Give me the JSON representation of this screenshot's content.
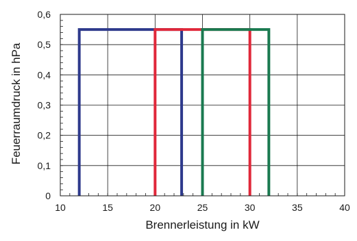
{
  "chart_data": {
    "type": "line",
    "title": "",
    "xlabel": "Brennerleistung in kW",
    "ylabel": "Feuerraumdruck in hPa",
    "xlim": [
      10,
      40
    ],
    "ylim": [
      0,
      0.6
    ],
    "xticks": [
      10,
      15,
      20,
      25,
      30,
      35,
      40
    ],
    "xtick_labels": [
      "10",
      "15",
      "20",
      "25",
      "30",
      "35",
      "40"
    ],
    "yticks": [
      0,
      0.1,
      0.2,
      0.3,
      0.4,
      0.5,
      0.6
    ],
    "ytick_labels": [
      "0",
      "0,1",
      "0,2",
      "0,3",
      "0,4",
      "0,5",
      "0,6"
    ],
    "grid": true,
    "series": [
      {
        "color": "#2e3a8c",
        "x": [
          12,
          12,
          22.8,
          22.8
        ],
        "y": [
          0,
          0.55,
          0.55,
          0
        ]
      },
      {
        "color": "#e0283a",
        "x": [
          20,
          20,
          30,
          30
        ],
        "y": [
          0,
          0.55,
          0.55,
          0
        ]
      },
      {
        "color": "#1a7a50",
        "x": [
          25,
          25,
          32,
          32
        ],
        "y": [
          0,
          0.55,
          0.55,
          0
        ]
      }
    ]
  }
}
